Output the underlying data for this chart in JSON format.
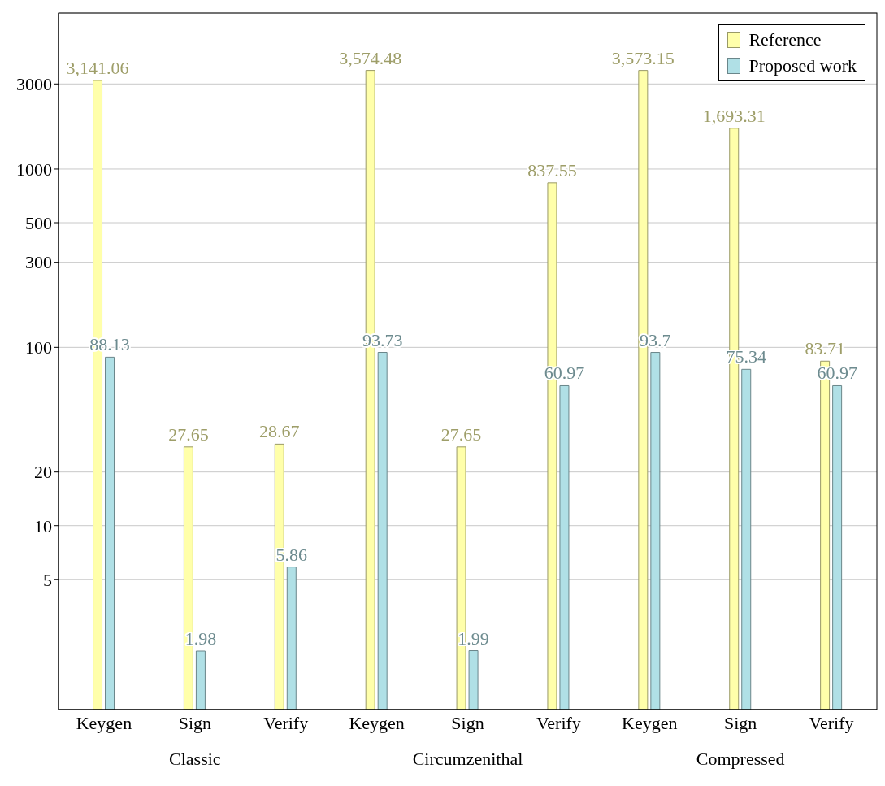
{
  "chart_data": {
    "type": "bar",
    "categories": [
      "Keygen",
      "Sign",
      "Verify",
      "Keygen",
      "Sign",
      "Verify",
      "Keygen",
      "Sign",
      "Verify"
    ],
    "series": [
      {
        "name": "Reference",
        "color": "#ffffaa",
        "values": [
          3141.06,
          27.65,
          28.67,
          3574.48,
          27.65,
          837.55,
          3573.15,
          1693.31,
          83.71
        ],
        "value_labels": [
          "3,141.06",
          "27.65",
          "28.67",
          "3,574.48",
          "27.65",
          "837.55",
          "3,573.15",
          "1,693.31",
          "83.71"
        ]
      },
      {
        "name": "Proposed work",
        "color": "#b0e0e6",
        "values": [
          88.13,
          1.98,
          5.86,
          93.73,
          1.99,
          60.97,
          93.7,
          75.34,
          60.97
        ],
        "value_labels": [
          "88.13",
          "1.98",
          "5.86",
          "93.73",
          "1.99",
          "60.97",
          "93.7",
          "75.34",
          "60.97"
        ]
      }
    ],
    "annotations": [
      "Classic",
      "Circumzenithal",
      "Compressed"
    ],
    "log": "y",
    "ylim": [
      0.93,
      7500
    ],
    "yticks": [
      5,
      10,
      20,
      100,
      300,
      500,
      1000,
      3000
    ],
    "grid": "y",
    "legend": "top right"
  }
}
